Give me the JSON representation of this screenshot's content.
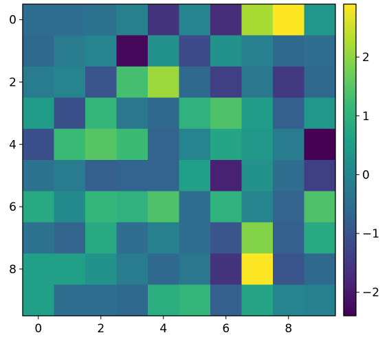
{
  "chart_data": {
    "type": "heatmap",
    "colormap": "viridis",
    "x": [
      0,
      1,
      2,
      3,
      4,
      5,
      6,
      7,
      8,
      9
    ],
    "y": [
      0,
      1,
      2,
      3,
      4,
      5,
      6,
      7,
      8,
      9
    ],
    "xticks": [
      "0",
      "2",
      "4",
      "6",
      "8"
    ],
    "yticks": [
      "0",
      "2",
      "4",
      "6",
      "8"
    ],
    "values": [
      [
        -0.5,
        -0.5,
        -0.4,
        -0.1,
        -1.6,
        0.0,
        -1.7,
        2.2,
        2.9,
        0.4
      ],
      [
        -0.6,
        -0.2,
        0.0,
        -2.3,
        0.3,
        -1.2,
        0.3,
        -0.1,
        -0.6,
        -0.5
      ],
      [
        -0.2,
        0.0,
        -1.0,
        1.3,
        2.1,
        -0.6,
        -1.4,
        -0.3,
        -1.5,
        -0.6
      ],
      [
        0.5,
        -1.1,
        1.1,
        -0.3,
        -0.6,
        1.0,
        1.4,
        0.5,
        -0.8,
        0.4
      ],
      [
        -1.1,
        1.2,
        1.5,
        1.2,
        -0.7,
        0.0,
        0.7,
        0.4,
        -0.2,
        -2.4
      ],
      [
        -0.4,
        -0.2,
        -0.8,
        -0.7,
        -0.7,
        0.6,
        -1.9,
        0.3,
        -0.5,
        -1.4
      ],
      [
        0.8,
        0.1,
        1.1,
        1.0,
        1.4,
        -0.5,
        1.0,
        0.0,
        -0.7,
        1.4
      ],
      [
        -0.4,
        -0.7,
        0.8,
        -0.5,
        -0.1,
        -0.5,
        -1.0,
        1.9,
        -0.8,
        0.8
      ],
      [
        0.6,
        0.6,
        0.3,
        -0.2,
        -0.6,
        -0.3,
        -1.6,
        2.9,
        -1.0,
        -0.6
      ],
      [
        0.6,
        -0.5,
        -0.5,
        -0.6,
        0.9,
        1.1,
        -0.8,
        0.7,
        0.0,
        -0.1
      ]
    ],
    "vmin": -2.4,
    "vmax": 2.9,
    "colorbar": {
      "ticks": [
        -2,
        -1,
        0,
        1,
        2
      ],
      "tick_labels": [
        "−2",
        "−1",
        "0",
        "1",
        "2"
      ]
    },
    "title": "",
    "xlabel": "",
    "ylabel": ""
  }
}
